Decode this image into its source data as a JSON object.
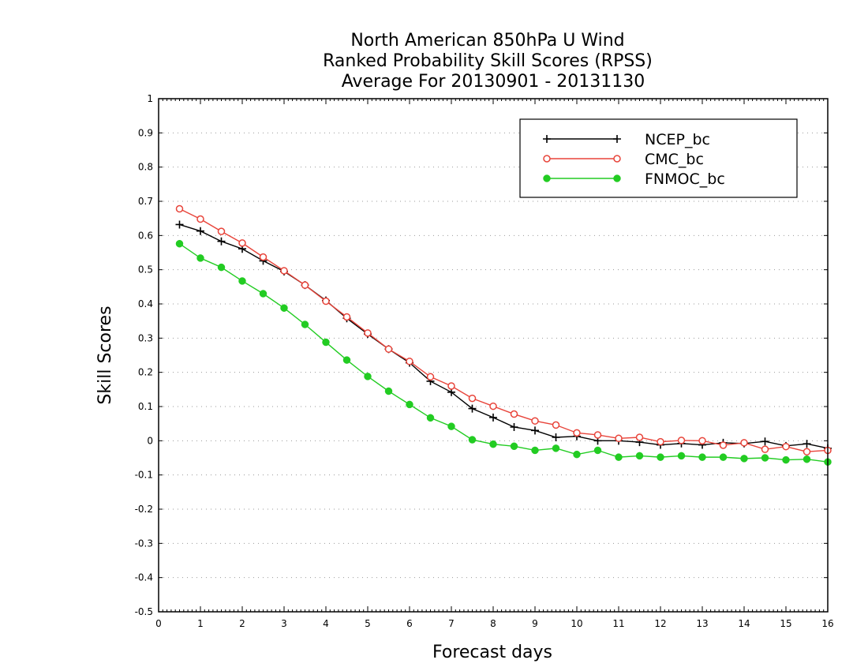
{
  "chart_data": {
    "type": "line",
    "title_lines": [
      "North American 850hPa U Wind",
      "Ranked Probability Skill Scores (RPSS)",
      "Average For 20130901 - 20131130"
    ],
    "xlabel": "Forecast days",
    "ylabel": "Skill Scores",
    "xlim": [
      0,
      16
    ],
    "ylim": [
      -0.5,
      1
    ],
    "x_ticks": [
      0,
      1,
      2,
      3,
      4,
      5,
      6,
      7,
      8,
      9,
      10,
      11,
      12,
      13,
      14,
      15,
      16
    ],
    "y_ticks": [
      -0.5,
      -0.4,
      -0.3,
      -0.2,
      -0.1,
      0,
      0.1,
      0.2,
      0.3,
      0.4,
      0.5,
      0.6,
      0.7,
      0.8,
      0.9,
      1
    ],
    "y_tick_labels": [
      "-0.5",
      "-0.4",
      "-0.3",
      "-0.2",
      "-0.1",
      "0",
      "0.1",
      "0.2",
      "0.3",
      "0.4",
      "0.5",
      "0.6",
      "0.7",
      "0.8",
      "0.9",
      "1"
    ],
    "grid": "horizontal dotted",
    "legend_position": "top-right",
    "x": [
      0.5,
      1,
      1.5,
      2,
      2.5,
      3,
      3.5,
      4,
      4.5,
      5,
      5.5,
      6,
      6.5,
      7,
      7.5,
      8,
      8.5,
      9,
      9.5,
      10,
      10.5,
      11,
      11.5,
      12,
      12.5,
      13,
      13.5,
      14,
      14.5,
      15,
      15.5,
      16
    ],
    "series": [
      {
        "name": "NCEP_bc",
        "color": "#000000",
        "marker": "plus",
        "values": [
          0.632,
          0.613,
          0.583,
          0.561,
          0.526,
          0.495,
          0.455,
          0.41,
          0.358,
          0.312,
          0.268,
          0.228,
          0.174,
          0.142,
          0.094,
          0.068,
          0.04,
          0.03,
          0.01,
          0.013,
          0.0,
          0.0,
          -0.004,
          -0.012,
          -0.008,
          -0.012,
          -0.006,
          -0.008,
          -0.002,
          -0.015,
          -0.009,
          -0.022
        ]
      },
      {
        "name": "CMC_bc",
        "color": "#e8443a",
        "marker": "open-circle",
        "values": [
          0.678,
          0.648,
          0.612,
          0.578,
          0.537,
          0.497,
          0.455,
          0.408,
          0.362,
          0.315,
          0.268,
          0.232,
          0.187,
          0.16,
          0.124,
          0.101,
          0.078,
          0.058,
          0.046,
          0.023,
          0.017,
          0.007,
          0.01,
          -0.003,
          0.001,
          0.0,
          -0.013,
          -0.006,
          -0.025,
          -0.017,
          -0.032,
          -0.028
        ]
      },
      {
        "name": "FNMOC_bc",
        "color": "#22cc22",
        "marker": "filled-circle",
        "values": [
          0.576,
          0.534,
          0.507,
          0.467,
          0.43,
          0.388,
          0.34,
          0.288,
          0.236,
          0.188,
          0.145,
          0.106,
          0.067,
          0.042,
          0.003,
          -0.01,
          -0.016,
          -0.028,
          -0.022,
          -0.04,
          -0.028,
          -0.048,
          -0.044,
          -0.048,
          -0.044,
          -0.048,
          -0.048,
          -0.052,
          -0.05,
          -0.056,
          -0.054,
          -0.062
        ]
      }
    ]
  }
}
